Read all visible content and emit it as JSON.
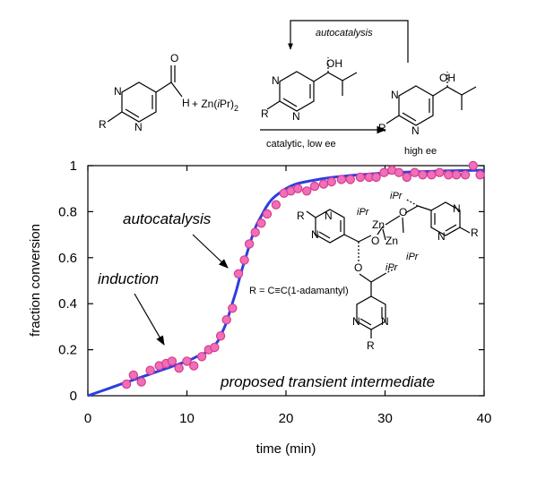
{
  "scheme": {
    "aldehyde_o": "O",
    "aldehyde_h": "H",
    "aldehyde_n1": "N",
    "aldehyde_n2": "N",
    "aldehyde_r": "R",
    "reagent": "+ Zn(",
    "reagent_ipr": "i",
    "reagent_tail": "Pr)",
    "reagent_sub": "2",
    "autocatalysis_label": "autocatalysis",
    "cat_oh": "OH",
    "cat_n1": "N",
    "cat_n2": "N",
    "cat_r": "R",
    "condition": "catalytic, low ee",
    "prod_oh": "OH",
    "prod_n1": "N",
    "prod_n2": "N",
    "prod_r": "R",
    "product_label": "high ee"
  },
  "annotations": {
    "autocatalysis": "autocatalysis",
    "induction": "induction",
    "intermediate": "proposed transient intermediate",
    "r_def": "R =  C≡C(1-adamantyl)"
  },
  "intermediate": {
    "ipr_1": "iPr",
    "ipr_2": "iPr",
    "ipr_3": "iPr",
    "ipr_4": "iPr",
    "zn_1": "Zn",
    "zn_2": "Zn",
    "o_1": "O",
    "o_2": "O",
    "o_3": "O",
    "r_1": "R",
    "r_2": "R",
    "r_3": "R",
    "n_a1": "N",
    "n_a2": "N",
    "n_b1": "N",
    "n_b2": "N",
    "n_c1": "N",
    "n_c2": "N"
  },
  "colors": {
    "points_fill": "#f06fb8",
    "points_stroke": "#d63c8f",
    "curve": "#2b3fe0"
  },
  "chart_data": {
    "type": "scatter",
    "title": "",
    "xlabel": "time (min)",
    "ylabel": "fraction conversion",
    "xlim": [
      0,
      40
    ],
    "ylim": [
      0,
      1
    ],
    "xticks": [
      0,
      10,
      20,
      30,
      40
    ],
    "yticks": [
      0,
      0.2,
      0.4,
      0.6,
      0.8,
      1
    ],
    "ytick_labels": [
      "0",
      "0.2",
      "0.4",
      "0.6",
      "0.8",
      "1"
    ],
    "xtick_labels": [
      "0",
      "10",
      "20",
      "30",
      "40"
    ],
    "grid": false,
    "series": [
      {
        "kind": "points",
        "x": [
          3.9,
          4.6,
          5.4,
          6.3,
          7.2,
          7.9,
          8.5,
          9.2,
          10.0,
          10.7,
          11.5,
          12.2,
          12.8,
          13.4,
          14.0,
          14.6,
          15.2,
          15.8,
          16.3,
          16.9,
          17.5,
          18.1,
          19.0,
          19.8,
          20.5,
          21.2,
          22.1,
          22.9,
          23.8,
          24.6,
          25.6,
          26.5,
          27.5,
          28.4,
          29.1,
          29.9,
          30.7,
          31.4,
          32.2,
          33.0,
          33.8,
          34.7,
          35.5,
          36.4,
          37.2,
          38.1,
          38.9,
          39.6
        ],
        "y": [
          0.05,
          0.09,
          0.06,
          0.11,
          0.13,
          0.14,
          0.15,
          0.12,
          0.15,
          0.13,
          0.17,
          0.2,
          0.21,
          0.26,
          0.33,
          0.38,
          0.53,
          0.59,
          0.66,
          0.71,
          0.75,
          0.79,
          0.83,
          0.88,
          0.89,
          0.9,
          0.89,
          0.91,
          0.92,
          0.93,
          0.94,
          0.94,
          0.95,
          0.95,
          0.95,
          0.97,
          0.98,
          0.97,
          0.95,
          0.97,
          0.96,
          0.96,
          0.97,
          0.96,
          0.96,
          0.96,
          1.0,
          0.96
        ]
      },
      {
        "kind": "fit",
        "x": [
          0,
          2,
          4,
          6,
          8,
          10,
          11,
          12,
          13,
          13.5,
          14,
          14.5,
          15,
          15.5,
          16,
          16.5,
          17,
          17.5,
          18,
          18.5,
          19,
          20,
          21,
          22,
          24,
          26,
          28,
          30,
          33,
          36,
          40
        ],
        "y": [
          0.0,
          0.03,
          0.06,
          0.09,
          0.12,
          0.15,
          0.17,
          0.19,
          0.23,
          0.27,
          0.32,
          0.39,
          0.46,
          0.54,
          0.61,
          0.68,
          0.74,
          0.78,
          0.82,
          0.85,
          0.87,
          0.9,
          0.92,
          0.93,
          0.945,
          0.955,
          0.962,
          0.968,
          0.973,
          0.977,
          0.98
        ]
      }
    ]
  }
}
